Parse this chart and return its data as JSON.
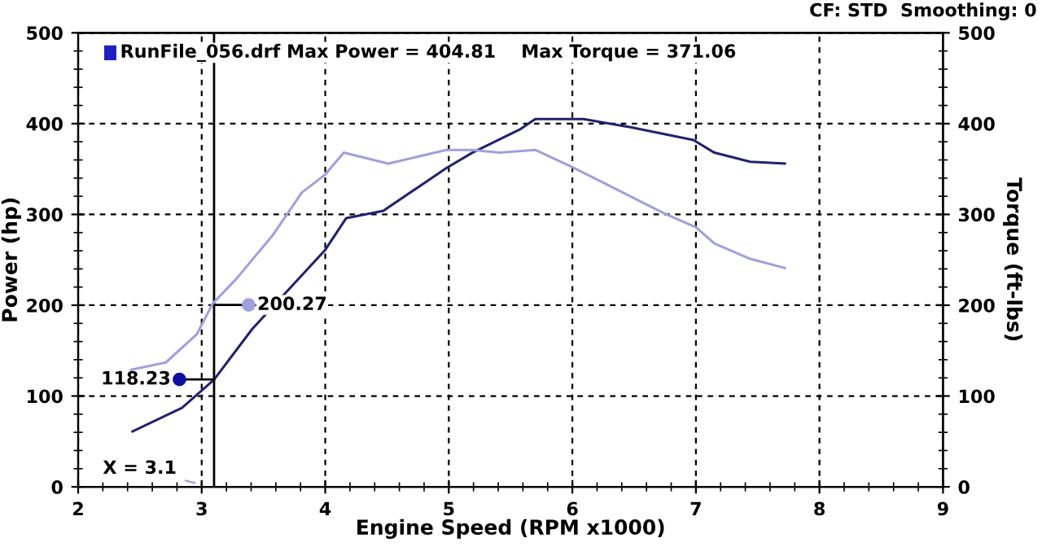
{
  "chart_data": {
    "type": "line",
    "xlabel": "Engine Speed (RPM x1000)",
    "ylabel": "Power (hp)",
    "y2label": "Torque (ft-lbs)",
    "xlim": [
      2,
      9
    ],
    "xticks": [
      2,
      3,
      4,
      5,
      6,
      7,
      8,
      9
    ],
    "ylim": [
      0,
      500
    ],
    "yticks": [
      0,
      100,
      200,
      300,
      400,
      500
    ],
    "y2lim": [
      0,
      500
    ],
    "y2ticks": [
      0,
      100,
      200,
      300,
      400,
      500
    ],
    "grid": true,
    "marker": "none",
    "line_style": "solid",
    "series": [
      {
        "color": "#22226e",
        "x": [
          2.44,
          2.84,
          3.1,
          3.41,
          4.0,
          4.17,
          4.47,
          4.98,
          5.19,
          5.58,
          5.7,
          6.09,
          6.47,
          6.98,
          7.15,
          7.44,
          7.72
        ],
        "values": [
          61,
          87,
          118,
          174,
          261,
          296,
          304,
          351,
          368,
          394,
          405,
          405,
          396,
          382,
          368,
          358,
          356
        ]
      },
      {
        "color": "#a0a0dc",
        "axis": "y2",
        "x": [
          2.43,
          2.71,
          2.96,
          3.09,
          3.28,
          3.58,
          3.81,
          4.0,
          4.15,
          4.51,
          4.98,
          5.19,
          5.41,
          5.7,
          6.0,
          6.25,
          6.76,
          7.0,
          7.15,
          7.44,
          7.72
        ],
        "values": [
          129,
          137,
          168,
          202,
          229,
          278,
          324,
          344,
          368,
          356,
          371,
          371,
          368,
          371,
          352,
          335,
          300,
          286,
          268,
          251,
          241
        ]
      }
    ],
    "ref_lines": [
      {
        "axis": "x",
        "value": 3.1,
        "label": "X = 3.1",
        "color": "#000000"
      }
    ],
    "annotations": [
      {
        "text": "118.23",
        "x": 3.1,
        "y": 118.23
      },
      {
        "text": "200.27",
        "x": 3.1,
        "y": 200.27
      },
      "RunFile_056.drf Max Power = 404.81    Max Torque = 371.06",
      "CF: STD  Smoothing: 0"
    ]
  }
}
